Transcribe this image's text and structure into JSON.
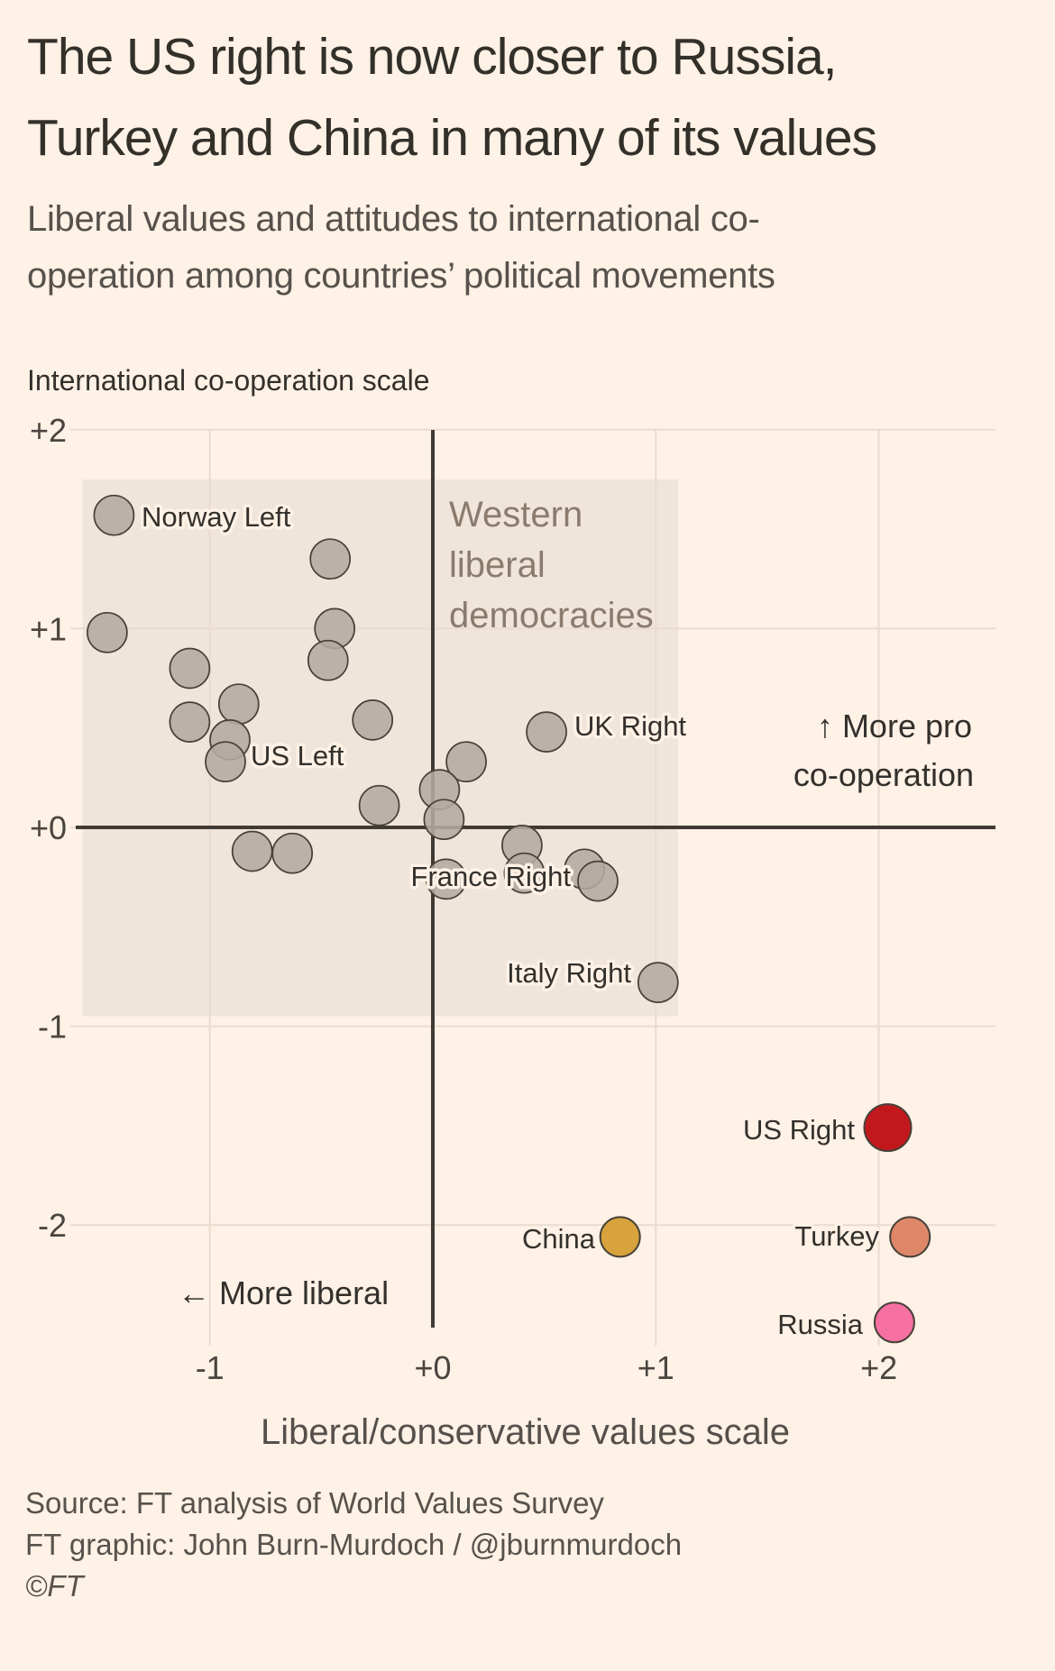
{
  "page": {
    "background": "#fef1e5"
  },
  "header": {
    "title_line1": "The US right is now closer to Russia,",
    "title_line2": "Turkey and China in many of its values",
    "subtitle_line1": "Liberal values and attitudes to international co-",
    "subtitle_line2": "operation among countries’ political movements"
  },
  "footer": {
    "source": "Source: FT analysis of World Values Survey",
    "credit": "FT graphic: John Burn-Murdoch / @jburnmurdoch",
    "copyright": "©FT"
  },
  "chart_data": {
    "type": "scatter",
    "x_axis": {
      "title": "Liberal/conservative values scale",
      "tick_values": [
        -1,
        0,
        1,
        2
      ],
      "tick_labels": [
        "-1",
        "+0",
        "+1",
        "+2"
      ],
      "range": [
        -1.63,
        2.52
      ]
    },
    "y_axis": {
      "title": "International co-operation scale",
      "tick_values": [
        2,
        1,
        0,
        -1,
        -2
      ],
      "tick_labels": [
        "+2",
        "+1",
        "+0",
        "-1",
        "-2"
      ],
      "range": [
        -2.6,
        2.0
      ]
    },
    "annotations": {
      "more_pro_line1": "↑  More pro",
      "more_pro_line2": "co-operation",
      "more_liberal": "←  More liberal"
    },
    "region": {
      "label_lines": [
        "Western",
        "liberal",
        "democracies"
      ],
      "x_range": [
        -1.57,
        1.1
      ],
      "y_range": [
        -0.95,
        1.75
      ],
      "fill": "#f0e5da",
      "label_color": "#8a7b6d"
    },
    "colors": {
      "dot_fill": "#b3aaa1",
      "dot_stroke": "#474139",
      "axis_dark": "#403a34",
      "gridline": "#e9dccf",
      "label": "#33302c",
      "tick": "#4a453f",
      "axis_title": "#55504b",
      "us_right": "#c2181d",
      "china": "#d8a33c",
      "turkey": "#de8769",
      "russia": "#f770a2"
    },
    "points": [
      {
        "x": -1.43,
        "y": 1.57,
        "label": "Norway Left"
      },
      {
        "x": -0.46,
        "y": 1.35
      },
      {
        "x": -1.46,
        "y": 0.98
      },
      {
        "x": -1.09,
        "y": 0.8
      },
      {
        "x": -0.44,
        "y": 1.0
      },
      {
        "x": -0.47,
        "y": 0.84
      },
      {
        "x": -0.87,
        "y": 0.62
      },
      {
        "x": -1.09,
        "y": 0.53
      },
      {
        "x": -0.91,
        "y": 0.44
      },
      {
        "x": -0.93,
        "y": 0.33,
        "label": "US Left"
      },
      {
        "x": -0.27,
        "y": 0.54
      },
      {
        "x": 0.15,
        "y": 0.33
      },
      {
        "x": 0.51,
        "y": 0.48,
        "label": "UK Right"
      },
      {
        "x": 0.03,
        "y": 0.19
      },
      {
        "x": -0.24,
        "y": 0.11
      },
      {
        "x": 0.05,
        "y": 0.04
      },
      {
        "x": -0.81,
        "y": -0.12
      },
      {
        "x": -0.63,
        "y": -0.13
      },
      {
        "x": 0.4,
        "y": -0.09
      },
      {
        "x": 0.41,
        "y": -0.23
      },
      {
        "x": 0.06,
        "y": -0.26
      },
      {
        "x": 0.68,
        "y": -0.21,
        "label": "France Right"
      },
      {
        "x": 0.74,
        "y": -0.27
      },
      {
        "x": 1.01,
        "y": -0.78,
        "label": "Italy Right"
      },
      {
        "x": 2.04,
        "y": -1.51,
        "label": "US Right",
        "color_key": "us_right",
        "r": 26
      },
      {
        "x": 0.84,
        "y": -2.06,
        "label": "China",
        "color_key": "china"
      },
      {
        "x": 2.14,
        "y": -2.06,
        "label": "Turkey",
        "color_key": "turkey"
      },
      {
        "x": 2.07,
        "y": -2.49,
        "label": "Russia",
        "color_key": "russia"
      }
    ]
  }
}
